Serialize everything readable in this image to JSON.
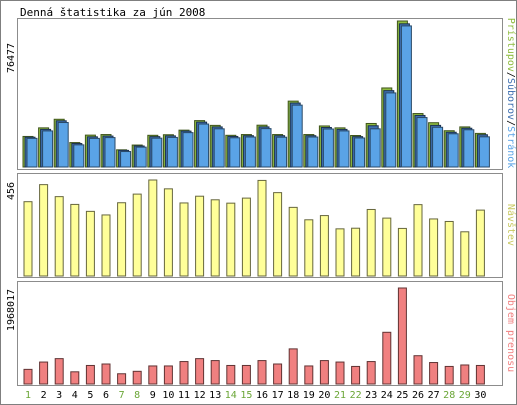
{
  "title": "Denná štatistika za jún 2008",
  "chart_data": [
    {
      "type": "bar",
      "name": "hits",
      "ymax_label": "76477",
      "ylim": [
        0,
        76477
      ],
      "side_label": {
        "parts": [
          "Prístupov",
          "/",
          "Súborov",
          "/",
          "Stránok"
        ]
      },
      "series": [
        {
          "name": "Prístupov",
          "color": "#8fbc3f",
          "values": [
            16000,
            20500,
            25000,
            12800,
            16700,
            17000,
            9000,
            11500,
            16600,
            16900,
            19300,
            24300,
            21800,
            16600,
            17000,
            21900,
            17000,
            34500,
            17000,
            21500,
            20500,
            16500,
            22800,
            41400,
            76477,
            28000,
            23200,
            19000,
            21000,
            17600
          ]
        },
        {
          "name": "Súborov",
          "color": "#3e6fb0",
          "values": [
            15600,
            19700,
            24200,
            12300,
            15800,
            16200,
            8700,
            11000,
            15900,
            16300,
            18800,
            23500,
            21000,
            16000,
            16400,
            21000,
            16400,
            33500,
            16400,
            20700,
            19700,
            15900,
            21600,
            40000,
            75000,
            27000,
            21800,
            18200,
            20300,
            16900
          ]
        },
        {
          "name": "Stránok",
          "color": "#5aa3e6",
          "values": [
            15000,
            18900,
            23300,
            11600,
            15000,
            15400,
            8100,
            10400,
            15100,
            15500,
            18000,
            22500,
            20000,
            15300,
            15700,
            20100,
            15600,
            32400,
            15700,
            19900,
            18900,
            15200,
            20000,
            38800,
            73900,
            25900,
            20800,
            17400,
            19500,
            15800
          ]
        }
      ]
    },
    {
      "type": "bar",
      "name": "visits",
      "ymax_label": "456",
      "ylim": [
        0,
        456
      ],
      "side_label": {
        "parts": [
          "Návštev"
        ]
      },
      "series": [
        {
          "name": "Návštev",
          "color": "#ffff99",
          "values": [
            353,
            434,
            377,
            340,
            307,
            290,
            348,
            389,
            456,
            414,
            347,
            379,
            362,
            346,
            370,
            454,
            396,
            326,
            267,
            287,
            224,
            227,
            316,
            275,
            226,
            339,
            271,
            259,
            210,
            313
          ]
        }
      ]
    },
    {
      "type": "bar",
      "name": "traffic",
      "ymax_label": "1968017",
      "ylim": [
        0,
        1968017
      ],
      "side_label": {
        "parts": [
          "Objem prenosu"
        ]
      },
      "series": [
        {
          "name": "Objem prenosu",
          "color": "#f08080",
          "values": [
            300000,
            450000,
            520000,
            250000,
            380000,
            410000,
            210000,
            260000,
            370000,
            370000,
            460000,
            520000,
            480000,
            380000,
            380000,
            480000,
            410000,
            720000,
            370000,
            480000,
            450000,
            360000,
            460000,
            1060000,
            1968017,
            580000,
            440000,
            360000,
            390000,
            380000
          ]
        }
      ]
    }
  ],
  "x_axis": {
    "categories": [
      "1",
      "2",
      "3",
      "4",
      "5",
      "6",
      "7",
      "8",
      "9",
      "10",
      "11",
      "12",
      "13",
      "14",
      "15",
      "16",
      "17",
      "18",
      "19",
      "20",
      "21",
      "22",
      "23",
      "24",
      "25",
      "26",
      "27",
      "28",
      "29",
      "30"
    ],
    "weekend_days": [
      "1",
      "7",
      "8",
      "14",
      "15",
      "21",
      "22",
      "28",
      "29"
    ],
    "weekday_color": "#000000",
    "weekend_color": "#6aa636"
  },
  "label_colors": {
    "Prístupov": "#8fbc3f",
    "Súborov": "#3e6fb0",
    "Stránok": "#5aa3e6",
    "Návštev": "#c8c860",
    "Objem prenosu": "#f08080",
    "separator": "#000000"
  }
}
